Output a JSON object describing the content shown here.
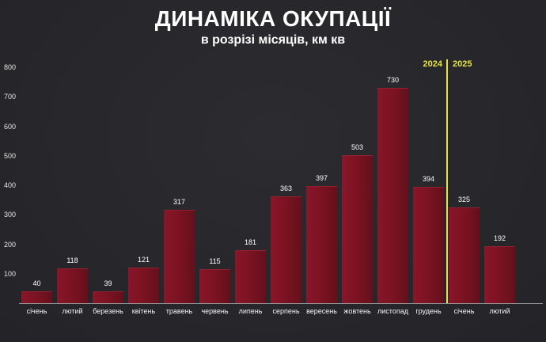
{
  "header": {
    "title": "ДИНАМІКА ОКУПАЦІЇ",
    "subtitle": "в розрізі місяців, км кв"
  },
  "colors": {
    "background": "#28282c",
    "bar": "#7d1322",
    "divider": "#e6e43e",
    "text": "#ffffff"
  },
  "chart_data": {
    "type": "bar",
    "title": "ДИНАМІКА ОКУПАЦІЇ",
    "subtitle": "в розрізі місяців, км кв",
    "categories": [
      "січень",
      "лютий",
      "березень",
      "квітень",
      "травень",
      "червень",
      "липень",
      "серпень",
      "вересень",
      "жовтень",
      "листопад",
      "грудень",
      "січень",
      "лютий"
    ],
    "values": [
      40,
      118,
      39,
      121,
      317,
      115,
      181,
      363,
      397,
      503,
      730,
      394,
      325,
      192
    ],
    "xlabel": "",
    "ylabel": "",
    "ylim": [
      0,
      800
    ],
    "yticks": [
      100,
      200,
      300,
      400,
      500,
      600,
      700,
      800
    ],
    "grid": false,
    "legend": "none",
    "divider": {
      "after_index": 11,
      "left_label": "2024",
      "right_label": "2025"
    }
  }
}
